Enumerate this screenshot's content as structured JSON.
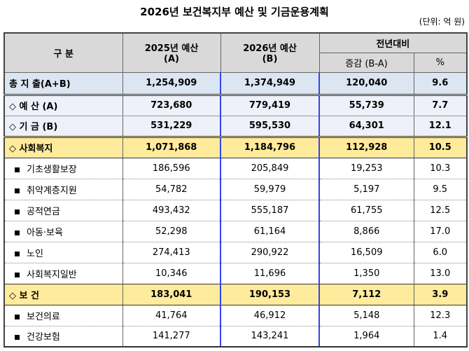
{
  "title": "2026년 보건복지부 예산 및 기금운용계획",
  "unit": "(단위: 억 원)",
  "header": {
    "category": "구 분",
    "col_a": "2025년 예산",
    "col_a_sub": "(A)",
    "col_b": "2026년 예산",
    "col_b_sub": "(B)",
    "yoy": "전년대비",
    "diff": "증감 (B-A)",
    "pct": "%"
  },
  "rows": [
    {
      "label": "총 지 출(A+B)",
      "a": "1,254,909",
      "b": "1,374,949",
      "d": "120,040",
      "p": "9.6"
    },
    {
      "label": "◇ 예 산 (A)",
      "a": "723,680",
      "b": "779,419",
      "d": "55,739",
      "p": "7.7"
    },
    {
      "label": "◇ 기 금 (B)",
      "a": "531,229",
      "b": "595,530",
      "d": "64,301",
      "p": "12.1"
    },
    {
      "label": "◇ 사회복지",
      "a": "1,071,868",
      "b": "1,184,796",
      "d": "112,928",
      "p": "10.5"
    },
    {
      "label": "기초생활보장",
      "a": "186,596",
      "b": "205,849",
      "d": "19,253",
      "p": "10.3"
    },
    {
      "label": "취약계층지원",
      "a": "54,782",
      "b": "59,979",
      "d": "5,197",
      "p": "9.5"
    },
    {
      "label": "공적연금",
      "a": "493,432",
      "b": "555,187",
      "d": "61,755",
      "p": "12.5"
    },
    {
      "label": "아동·보육",
      "a": "52,298",
      "b": "61,164",
      "d": "8,866",
      "p": "17.0"
    },
    {
      "label": "노인",
      "a": "274,413",
      "b": "290,922",
      "d": "16,509",
      "p": "6.0"
    },
    {
      "label": "사회복지일반",
      "a": "10,346",
      "b": "11,696",
      "d": "1,350",
      "p": "13.0"
    },
    {
      "label": "◇ 보 건",
      "a": "183,041",
      "b": "190,153",
      "d": "7,112",
      "p": "3.9"
    },
    {
      "label": "보건의료",
      "a": "41,764",
      "b": "46,912",
      "d": "5,148",
      "p": "12.3"
    },
    {
      "label": "건강보험",
      "a": "141,277",
      "b": "143,241",
      "d": "1,964",
      "p": "1.4"
    }
  ]
}
